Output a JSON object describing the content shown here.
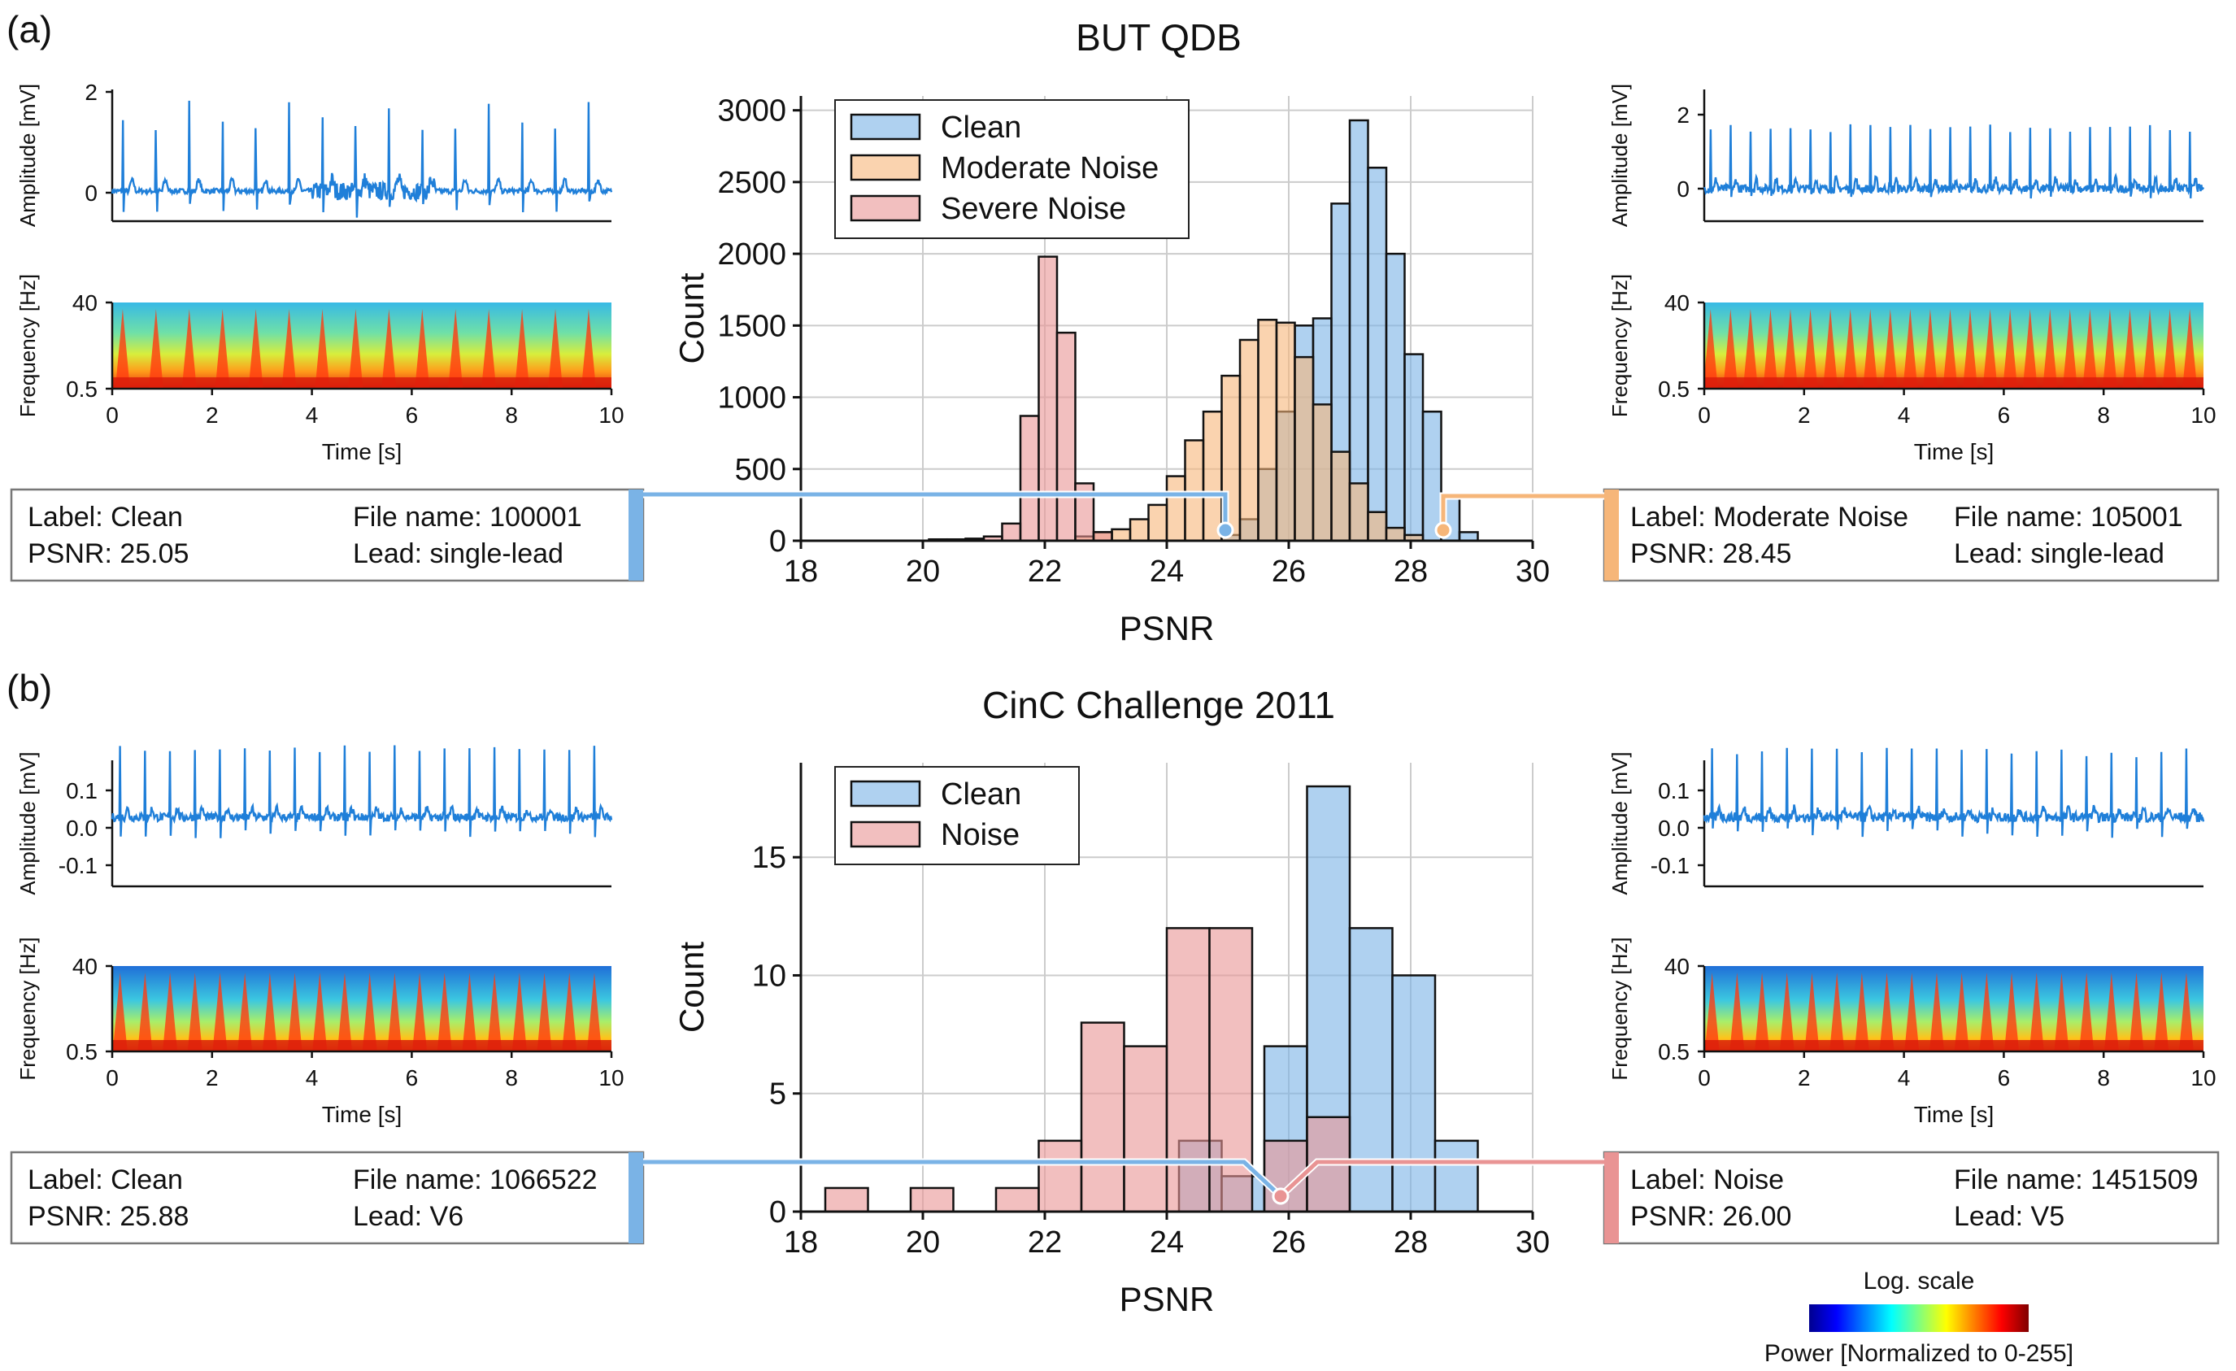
{
  "panel_a": {
    "letter": "(a)",
    "title": "BUT QDB",
    "left_signal": {
      "amp_label": "Amplitude [mV]",
      "amp_ticks": [
        "2",
        "0"
      ],
      "freq_label": "Frequency [Hz]",
      "freq_ticks": [
        "40",
        "0.5"
      ],
      "time_ticks": [
        "0",
        "2",
        "4",
        "6",
        "8",
        "10"
      ],
      "time_label": "Time [s]"
    },
    "right_signal": {
      "amp_label": "Amplitude [mV]",
      "amp_ticks": [
        "2",
        "0"
      ],
      "freq_label": "Frequency [Hz]",
      "freq_ticks": [
        "40",
        "0.5"
      ],
      "time_ticks": [
        "0",
        "2",
        "4",
        "6",
        "8",
        "10"
      ],
      "time_label": "Time [s]"
    },
    "left_info": {
      "label": "Label: Clean",
      "psnr": "PSNR: 25.05",
      "file": "File name: 100001",
      "lead": "Lead: single-lead",
      "color": "#7ab3e6"
    },
    "right_info": {
      "label": "Label: Moderate Noise",
      "psnr": "PSNR: 28.45",
      "file": "File name: 105001",
      "lead": "Lead: single-lead",
      "color": "#f6b679"
    }
  },
  "panel_b": {
    "letter": "(b)",
    "title": "CinC Challenge 2011",
    "left_signal": {
      "amp_label": "Amplitude [mV]",
      "amp_ticks": [
        "0.1",
        "0.0",
        "-0.1"
      ],
      "freq_label": "Frequency [Hz]",
      "freq_ticks": [
        "40",
        "0.5"
      ],
      "time_ticks": [
        "0",
        "2",
        "4",
        "6",
        "8",
        "10"
      ],
      "time_label": "Time [s]"
    },
    "right_signal": {
      "amp_label": "Amplitude [mV]",
      "amp_ticks": [
        "0.1",
        "0.0",
        "-0.1"
      ],
      "freq_label": "Frequency [Hz]",
      "freq_ticks": [
        "40",
        "0.5"
      ],
      "time_ticks": [
        "0",
        "2",
        "4",
        "6",
        "8",
        "10"
      ],
      "time_label": "Time [s]"
    },
    "left_info": {
      "label": "Label: Clean",
      "psnr": "PSNR: 25.88",
      "file": "File name: 1066522",
      "lead": "Lead: V6",
      "color": "#7ab3e6"
    },
    "right_info": {
      "label": "Label: Noise",
      "psnr": "PSNR: 26.00",
      "file": "File name: 1451509",
      "lead": "Lead: V5",
      "color": "#e99494"
    }
  },
  "colorbar": {
    "title": "Log. scale",
    "label": "Power [Normalized to 0-255]"
  },
  "chart_data": [
    {
      "type": "bar",
      "title": "BUT QDB",
      "xlabel": "PSNR",
      "ylabel": "Count",
      "xlim": [
        18,
        30
      ],
      "ylim": [
        0,
        3100
      ],
      "xticks": [
        18,
        20,
        22,
        24,
        26,
        28,
        30
      ],
      "yticks": [
        0,
        500,
        1000,
        1500,
        2000,
        2500,
        3000
      ],
      "grid": true,
      "legend": "top-left",
      "bin_width": 0.3,
      "series": [
        {
          "name": "Clean",
          "color": "#7ab3e6",
          "bins": [
            [
              24.9,
              40
            ],
            [
              25.2,
              150
            ],
            [
              25.5,
              500
            ],
            [
              25.8,
              900
            ],
            [
              26.1,
              1500
            ],
            [
              26.4,
              1550
            ],
            [
              26.7,
              2350
            ],
            [
              27.0,
              2930
            ],
            [
              27.3,
              2600
            ],
            [
              27.6,
              2000
            ],
            [
              27.9,
              1300
            ],
            [
              28.2,
              900
            ],
            [
              28.5,
              300
            ],
            [
              28.8,
              60
            ]
          ]
        },
        {
          "name": "Moderate Noise",
          "color": "#f6b679",
          "bins": [
            [
              22.5,
              30
            ],
            [
              22.8,
              60
            ],
            [
              23.1,
              80
            ],
            [
              23.4,
              150
            ],
            [
              23.7,
              250
            ],
            [
              24.0,
              450
            ],
            [
              24.3,
              700
            ],
            [
              24.6,
              900
            ],
            [
              24.9,
              1150
            ],
            [
              25.2,
              1400
            ],
            [
              25.5,
              1540
            ],
            [
              25.8,
              1520
            ],
            [
              26.1,
              1280
            ],
            [
              26.4,
              950
            ],
            [
              26.7,
              620
            ],
            [
              27.0,
              400
            ],
            [
              27.3,
              200
            ],
            [
              27.6,
              90
            ],
            [
              27.9,
              40
            ]
          ]
        },
        {
          "name": "Severe Noise",
          "color": "#e99494",
          "bins": [
            [
              20.1,
              10
            ],
            [
              20.4,
              10
            ],
            [
              20.7,
              15
            ],
            [
              21.0,
              30
            ],
            [
              21.3,
              120
            ],
            [
              21.6,
              870
            ],
            [
              21.9,
              1980
            ],
            [
              22.2,
              1450
            ],
            [
              22.5,
              400
            ],
            [
              22.8,
              60
            ]
          ]
        }
      ]
    },
    {
      "type": "bar",
      "title": "CinC Challenge 2011",
      "xlabel": "PSNR",
      "ylabel": "Count",
      "xlim": [
        18,
        30
      ],
      "ylim": [
        0,
        19
      ],
      "xticks": [
        18,
        20,
        22,
        24,
        26,
        28,
        30
      ],
      "yticks": [
        0,
        5,
        10,
        15
      ],
      "grid": true,
      "legend": "top-left",
      "bin_width": 0.7,
      "series": [
        {
          "name": "Clean",
          "color": "#7ab3e6",
          "bins": [
            [
              24.2,
              3
            ],
            [
              24.9,
              1.5
            ],
            [
              25.6,
              7
            ],
            [
              26.3,
              18
            ],
            [
              27.0,
              12
            ],
            [
              27.7,
              10
            ],
            [
              28.4,
              3
            ]
          ]
        },
        {
          "name": "Noise",
          "color": "#e99494",
          "bins": [
            [
              18.4,
              1
            ],
            [
              19.8,
              1
            ],
            [
              21.2,
              1
            ],
            [
              21.9,
              3
            ],
            [
              22.6,
              8
            ],
            [
              23.3,
              7
            ],
            [
              24.0,
              12
            ],
            [
              24.7,
              12
            ],
            [
              25.6,
              3
            ],
            [
              26.3,
              4
            ]
          ]
        }
      ]
    }
  ]
}
